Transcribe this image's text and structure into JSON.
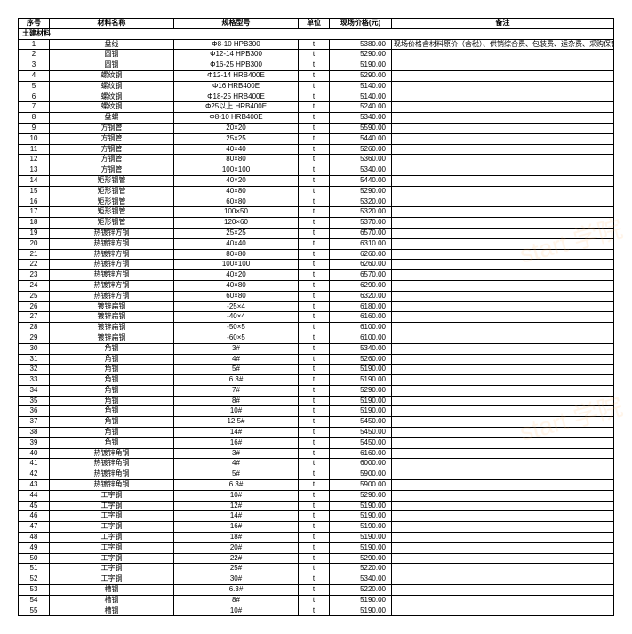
{
  "headers": {
    "seq": "序号",
    "name": "材料名称",
    "spec": "规格型号",
    "unit": "单位",
    "price": "现场价格(元)",
    "remark": "备注"
  },
  "section": "土建材料",
  "remark_text": "现场价格含材料原价（含税）、供销综合费、包装费、运杂费、采购保管费",
  "watermark": "start 学院",
  "rows": [
    {
      "seq": "1",
      "name": "盘线",
      "spec": "Φ8-10 HPB300",
      "unit": "t",
      "price": "5380.00",
      "remark": true
    },
    {
      "seq": "2",
      "name": "圆钢",
      "spec": "Φ12-14 HPB300",
      "unit": "t",
      "price": "5290.00"
    },
    {
      "seq": "3",
      "name": "圆钢",
      "spec": "Φ16-25 HPB300",
      "unit": "t",
      "price": "5190.00"
    },
    {
      "seq": "4",
      "name": "螺纹钢",
      "spec": "Φ12-14 HRB400E",
      "unit": "t",
      "price": "5290.00"
    },
    {
      "seq": "5",
      "name": "螺纹钢",
      "spec": "Φ16 HRB400E",
      "unit": "t",
      "price": "5140.00"
    },
    {
      "seq": "6",
      "name": "螺纹钢",
      "spec": "Φ18-25 HRB400E",
      "unit": "t",
      "price": "5140.00"
    },
    {
      "seq": "7",
      "name": "螺纹钢",
      "spec": "Φ25以上 HRB400E",
      "unit": "t",
      "price": "5240.00"
    },
    {
      "seq": "8",
      "name": "盘螺",
      "spec": "Φ8-10 HRB400E",
      "unit": "t",
      "price": "5340.00"
    },
    {
      "seq": "9",
      "name": "方钢管",
      "spec": "20×20",
      "unit": "t",
      "price": "5590.00"
    },
    {
      "seq": "10",
      "name": "方钢管",
      "spec": "25×25",
      "unit": "t",
      "price": "5440.00"
    },
    {
      "seq": "11",
      "name": "方钢管",
      "spec": "40×40",
      "unit": "t",
      "price": "5260.00"
    },
    {
      "seq": "12",
      "name": "方钢管",
      "spec": "80×80",
      "unit": "t",
      "price": "5360.00"
    },
    {
      "seq": "13",
      "name": "方钢管",
      "spec": "100×100",
      "unit": "t",
      "price": "5340.00"
    },
    {
      "seq": "14",
      "name": "矩形钢管",
      "spec": "40×20",
      "unit": "t",
      "price": "5440.00"
    },
    {
      "seq": "15",
      "name": "矩形钢管",
      "spec": "40×80",
      "unit": "t",
      "price": "5290.00"
    },
    {
      "seq": "16",
      "name": "矩形钢管",
      "spec": "60×80",
      "unit": "t",
      "price": "5320.00"
    },
    {
      "seq": "17",
      "name": "矩形钢管",
      "spec": "100×50",
      "unit": "t",
      "price": "5320.00"
    },
    {
      "seq": "18",
      "name": "矩形钢管",
      "spec": "120×60",
      "unit": "t",
      "price": "5370.00"
    },
    {
      "seq": "19",
      "name": "热镀锌方钢",
      "spec": "25×25",
      "unit": "t",
      "price": "6570.00"
    },
    {
      "seq": "20",
      "name": "热镀锌方钢",
      "spec": "40×40",
      "unit": "t",
      "price": "6310.00"
    },
    {
      "seq": "21",
      "name": "热镀锌方钢",
      "spec": "80×80",
      "unit": "t",
      "price": "6260.00"
    },
    {
      "seq": "22",
      "name": "热镀锌方钢",
      "spec": "100×100",
      "unit": "t",
      "price": "6260.00"
    },
    {
      "seq": "23",
      "name": "热镀锌方钢",
      "spec": "40×20",
      "unit": "t",
      "price": "6570.00"
    },
    {
      "seq": "24",
      "name": "热镀锌方钢",
      "spec": "40×80",
      "unit": "t",
      "price": "6290.00"
    },
    {
      "seq": "25",
      "name": "热镀锌方钢",
      "spec": "60×80",
      "unit": "t",
      "price": "6320.00"
    },
    {
      "seq": "26",
      "name": "镀锌扁钢",
      "spec": "-25×4",
      "unit": "t",
      "price": "6180.00"
    },
    {
      "seq": "27",
      "name": "镀锌扁钢",
      "spec": "-40×4",
      "unit": "t",
      "price": "6160.00"
    },
    {
      "seq": "28",
      "name": "镀锌扁钢",
      "spec": "-50×5",
      "unit": "t",
      "price": "6100.00"
    },
    {
      "seq": "29",
      "name": "镀锌扁钢",
      "spec": "-60×5",
      "unit": "t",
      "price": "6100.00"
    },
    {
      "seq": "30",
      "name": "角钢",
      "spec": "3#",
      "unit": "t",
      "price": "5340.00"
    },
    {
      "seq": "31",
      "name": "角钢",
      "spec": "4#",
      "unit": "t",
      "price": "5260.00"
    },
    {
      "seq": "32",
      "name": "角钢",
      "spec": "5#",
      "unit": "t",
      "price": "5190.00"
    },
    {
      "seq": "33",
      "name": "角钢",
      "spec": "6.3#",
      "unit": "t",
      "price": "5190.00"
    },
    {
      "seq": "34",
      "name": "角钢",
      "spec": "7#",
      "unit": "t",
      "price": "5290.00"
    },
    {
      "seq": "35",
      "name": "角钢",
      "spec": "8#",
      "unit": "t",
      "price": "5190.00"
    },
    {
      "seq": "36",
      "name": "角钢",
      "spec": "10#",
      "unit": "t",
      "price": "5190.00"
    },
    {
      "seq": "37",
      "name": "角钢",
      "spec": "12.5#",
      "unit": "t",
      "price": "5450.00"
    },
    {
      "seq": "38",
      "name": "角钢",
      "spec": "14#",
      "unit": "t",
      "price": "5450.00"
    },
    {
      "seq": "39",
      "name": "角钢",
      "spec": "16#",
      "unit": "t",
      "price": "5450.00"
    },
    {
      "seq": "40",
      "name": "热镀锌角钢",
      "spec": "3#",
      "unit": "t",
      "price": "6160.00"
    },
    {
      "seq": "41",
      "name": "热镀锌角钢",
      "spec": "4#",
      "unit": "t",
      "price": "6000.00"
    },
    {
      "seq": "42",
      "name": "热镀锌角钢",
      "spec": "5#",
      "unit": "t",
      "price": "5900.00"
    },
    {
      "seq": "43",
      "name": "热镀锌角钢",
      "spec": "6.3#",
      "unit": "t",
      "price": "5900.00"
    },
    {
      "seq": "44",
      "name": "工字钢",
      "spec": "10#",
      "unit": "t",
      "price": "5290.00"
    },
    {
      "seq": "45",
      "name": "工字钢",
      "spec": "12#",
      "unit": "t",
      "price": "5190.00"
    },
    {
      "seq": "46",
      "name": "工字钢",
      "spec": "14#",
      "unit": "t",
      "price": "5190.00"
    },
    {
      "seq": "47",
      "name": "工字钢",
      "spec": "16#",
      "unit": "t",
      "price": "5190.00"
    },
    {
      "seq": "48",
      "name": "工字钢",
      "spec": "18#",
      "unit": "t",
      "price": "5190.00"
    },
    {
      "seq": "49",
      "name": "工字钢",
      "spec": "20#",
      "unit": "t",
      "price": "5190.00"
    },
    {
      "seq": "50",
      "name": "工字钢",
      "spec": "22#",
      "unit": "t",
      "price": "5290.00"
    },
    {
      "seq": "51",
      "name": "工字钢",
      "spec": "25#",
      "unit": "t",
      "price": "5220.00"
    },
    {
      "seq": "52",
      "name": "工字钢",
      "spec": "30#",
      "unit": "t",
      "price": "5340.00"
    },
    {
      "seq": "53",
      "name": "槽钢",
      "spec": "6.3#",
      "unit": "t",
      "price": "5220.00"
    },
    {
      "seq": "54",
      "name": "槽钢",
      "spec": "8#",
      "unit": "t",
      "price": "5190.00"
    },
    {
      "seq": "55",
      "name": "槽钢",
      "spec": "10#",
      "unit": "t",
      "price": "5190.00"
    }
  ]
}
